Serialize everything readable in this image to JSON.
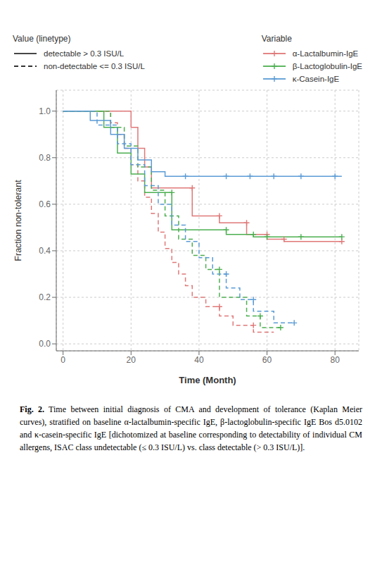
{
  "chart_data": {
    "type": "step",
    "xlabel": "Time (Month)",
    "ylabel": "Fraction non-tolerant",
    "xlim": [
      -2,
      87
    ],
    "ylim": [
      -0.03,
      1.09
    ],
    "xticks": [
      0,
      20,
      40,
      60,
      80
    ],
    "yticks": [
      {
        "value": 0.0,
        "label": "0.0"
      },
      0.2,
      0.4,
      0.6,
      0.8,
      {
        "value": 1.0,
        "label": "1.0"
      }
    ],
    "grid": true,
    "legends": [
      {
        "title": "Value (linetype)",
        "items": [
          {
            "label": "detectable > 0.3 ISU/L",
            "line_style": "solid"
          },
          {
            "label": "non-detectable <= 0.3 ISU/L",
            "line_style": "dashed"
          }
        ]
      },
      {
        "title": "Variable",
        "items": [
          {
            "label": "α-Lactalbumin-IgE",
            "color": "#E07878",
            "marker": "plus"
          },
          {
            "label": "β-Lactoglobulin-IgE",
            "color": "#4CAF50",
            "marker": "plus"
          },
          {
            "label": "κ-Casein-IgE",
            "color": "#5B9BD5",
            "marker": "plus"
          }
        ]
      }
    ],
    "caption_bold": "Fig. 2.",
    "caption": "Time between initial diagnosis of CMA and development of tolerance (Kaplan Meier curves), stratified on baseline α-lactalbumin-specific IgE, β-lactoglobulin-specific IgE Bos d5.0102 and κ-casein-specific IgE [dichotomized at baseline corresponding to detectability of individual CM allergens, ISAC class undetectable (≤ 0.3 ISU/L) vs. class detectable (> 0.3 ISU/L)].",
    "series": [
      {
        "name": "α-Lactalbumin-IgE",
        "color": "#E07878",
        "line_style": "solid",
        "marker": "plus",
        "x": [
          0,
          20,
          20,
          22,
          22,
          24,
          24,
          26,
          26,
          38,
          38,
          46,
          46,
          54,
          54,
          60,
          60,
          65,
          65,
          82
        ],
        "values": [
          1.0,
          1.0,
          0.93,
          0.93,
          0.84,
          0.84,
          0.76,
          0.76,
          0.67,
          0.67,
          0.55,
          0.55,
          0.52,
          0.52,
          0.47,
          0.47,
          0.45,
          0.45,
          0.44,
          0.44
        ],
        "censors": [
          [
            38,
            0.67
          ],
          [
            46,
            0.55
          ],
          [
            54,
            0.52
          ],
          [
            60,
            0.47
          ],
          [
            65,
            0.45
          ],
          [
            82,
            0.44
          ]
        ]
      },
      {
        "name": "α-Lactalbumin-IgE",
        "color": "#E07878",
        "line_style": "dashed",
        "marker": "plus",
        "x": [
          0,
          14,
          14,
          16,
          16,
          18,
          18,
          20,
          20,
          22,
          22,
          24,
          24,
          26,
          26,
          28,
          28,
          30,
          30,
          32,
          32,
          34,
          34,
          36,
          36,
          38,
          38,
          42,
          42,
          46,
          46,
          50,
          50,
          56,
          56,
          62
        ],
        "values": [
          1.0,
          1.0,
          0.95,
          0.95,
          0.9,
          0.9,
          0.84,
          0.84,
          0.77,
          0.77,
          0.7,
          0.7,
          0.63,
          0.63,
          0.56,
          0.56,
          0.48,
          0.48,
          0.41,
          0.41,
          0.35,
          0.35,
          0.3,
          0.3,
          0.25,
          0.25,
          0.2,
          0.2,
          0.16,
          0.16,
          0.12,
          0.12,
          0.08,
          0.08,
          0.05,
          0.05
        ],
        "censors": [
          [
            46,
            0.16
          ],
          [
            56,
            0.08
          ]
        ]
      },
      {
        "name": "β-Lactoglobulin-IgE",
        "color": "#4CAF50",
        "line_style": "solid",
        "marker": "plus",
        "x": [
          0,
          12,
          12,
          16,
          16,
          20,
          20,
          24,
          24,
          26,
          26,
          32,
          32,
          48,
          48,
          56,
          56,
          60,
          60,
          70,
          70,
          82
        ],
        "values": [
          1.0,
          1.0,
          0.93,
          0.93,
          0.82,
          0.82,
          0.73,
          0.73,
          0.65,
          0.65,
          0.65,
          0.65,
          0.49,
          0.49,
          0.47,
          0.47,
          0.46,
          0.46,
          0.46,
          0.46,
          0.46,
          0.46
        ],
        "censors": [
          [
            32,
            0.65
          ],
          [
            48,
            0.49
          ],
          [
            56,
            0.47
          ],
          [
            60,
            0.46
          ],
          [
            70,
            0.46
          ],
          [
            82,
            0.46
          ]
        ]
      },
      {
        "name": "β-Lactoglobulin-IgE",
        "color": "#4CAF50",
        "line_style": "dashed",
        "marker": "plus",
        "x": [
          0,
          14,
          14,
          18,
          18,
          22,
          22,
          26,
          26,
          30,
          30,
          34,
          34,
          38,
          38,
          42,
          42,
          46,
          46,
          54,
          54,
          58,
          58,
          64
        ],
        "values": [
          1.0,
          1.0,
          0.93,
          0.93,
          0.85,
          0.85,
          0.76,
          0.76,
          0.66,
          0.66,
          0.55,
          0.55,
          0.45,
          0.45,
          0.38,
          0.38,
          0.32,
          0.32,
          0.2,
          0.2,
          0.12,
          0.12,
          0.07,
          0.07
        ],
        "censors": [
          [
            46,
            0.32
          ],
          [
            58,
            0.12
          ],
          [
            64,
            0.07
          ]
        ]
      },
      {
        "name": "κ-Casein-IgE",
        "color": "#5B9BD5",
        "line_style": "solid",
        "marker": "plus",
        "x": [
          0,
          8,
          8,
          14,
          14,
          18,
          18,
          22,
          22,
          26,
          26,
          30,
          30,
          36,
          36,
          48,
          48,
          55,
          55,
          62,
          62,
          70,
          70,
          80,
          80,
          82
        ],
        "values": [
          1.0,
          1.0,
          0.96,
          0.96,
          0.9,
          0.9,
          0.84,
          0.84,
          0.79,
          0.79,
          0.74,
          0.74,
          0.72,
          0.72,
          0.72,
          0.72,
          0.72,
          0.72,
          0.72,
          0.72,
          0.72,
          0.72,
          0.72,
          0.72,
          0.72,
          0.72
        ],
        "censors": [
          [
            36,
            0.72
          ],
          [
            48,
            0.72
          ],
          [
            55,
            0.72
          ],
          [
            62,
            0.72
          ],
          [
            70,
            0.72
          ],
          [
            80,
            0.72
          ]
        ]
      },
      {
        "name": "κ-Casein-IgE",
        "color": "#5B9BD5",
        "line_style": "dashed",
        "marker": "plus",
        "x": [
          0,
          10,
          10,
          16,
          16,
          20,
          20,
          24,
          24,
          28,
          28,
          32,
          32,
          36,
          36,
          40,
          40,
          44,
          44,
          48,
          48,
          52,
          52,
          56,
          56,
          62,
          62,
          68
        ],
        "values": [
          1.0,
          1.0,
          0.94,
          0.94,
          0.86,
          0.86,
          0.77,
          0.77,
          0.68,
          0.68,
          0.6,
          0.6,
          0.51,
          0.51,
          0.44,
          0.44,
          0.37,
          0.37,
          0.3,
          0.3,
          0.24,
          0.24,
          0.19,
          0.19,
          0.14,
          0.14,
          0.09,
          0.09
        ],
        "censors": [
          [
            48,
            0.3
          ],
          [
            56,
            0.19
          ],
          [
            68,
            0.09
          ]
        ]
      }
    ]
  }
}
